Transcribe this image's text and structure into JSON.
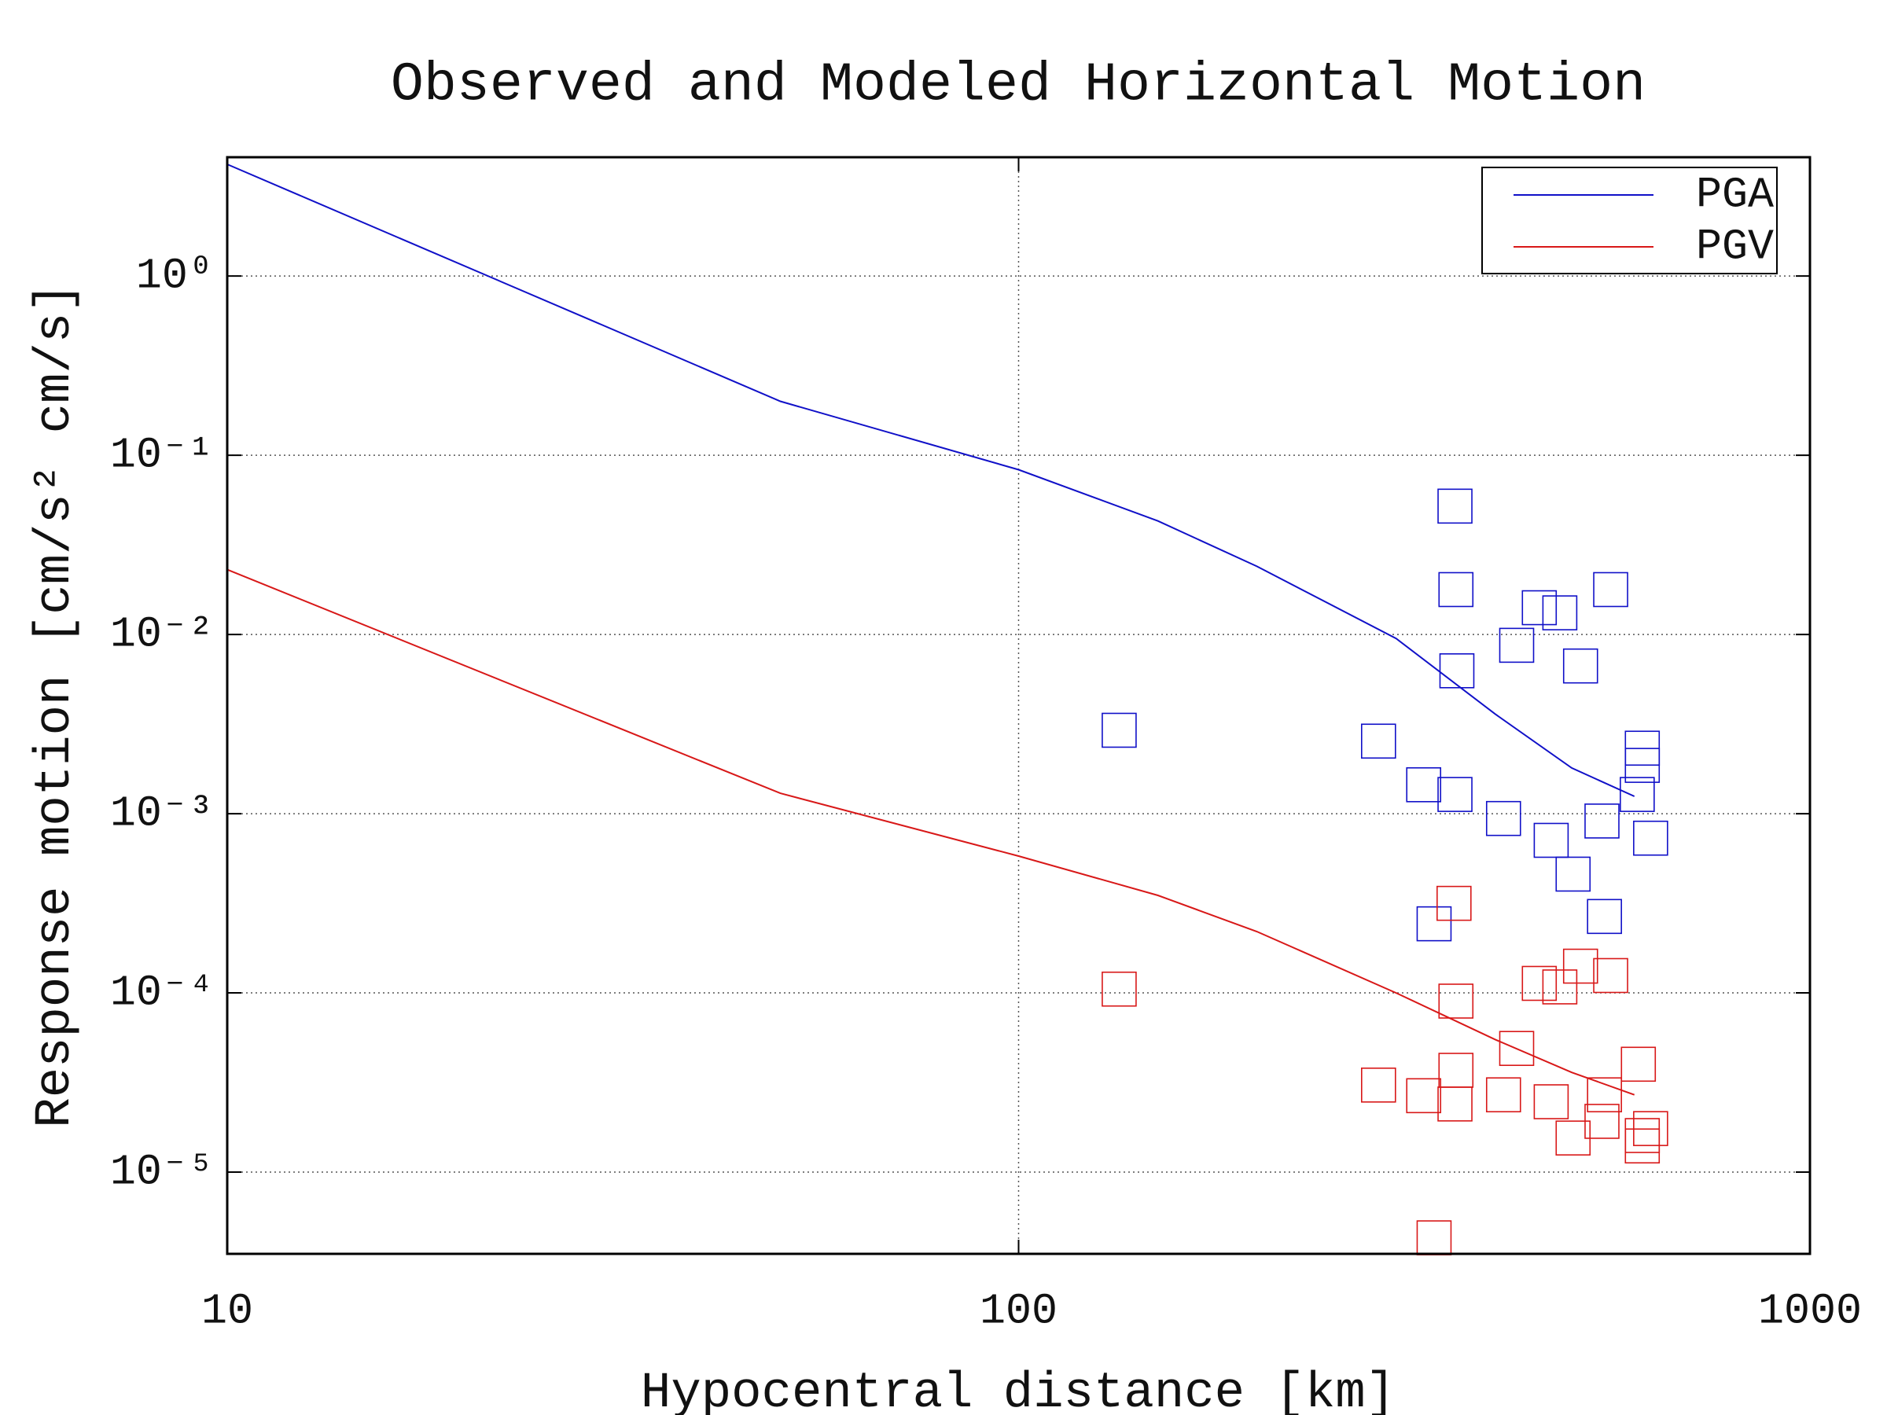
{
  "chart_data": {
    "type": "line",
    "title": "Observed and Modeled Horizontal Motion",
    "x_label": "Hypocentral distance [km]",
    "y_label": "Response motion [cm/s²  cm/s]",
    "xscale": "log",
    "yscale": "log",
    "xlim": [
      10,
      1000
    ],
    "ylim": [
      3.5e-06,
      4.6
    ],
    "xticks": [
      10,
      100,
      1000
    ],
    "yticks": [
      {
        "value": 1e-05,
        "label": "10⁻⁵"
      },
      {
        "value": 0.0001,
        "label": "10⁻⁴"
      },
      {
        "value": 0.001,
        "label": "10⁻³"
      },
      {
        "value": 0.01,
        "label": "10⁻²"
      },
      {
        "value": 0.1,
        "label": "10⁻¹"
      },
      {
        "value": 1,
        "label": "10⁰"
      }
    ],
    "grid": true,
    "legend": "upper right",
    "series": [
      {
        "name": "PGA",
        "color": "#1010c8",
        "x": [
          10,
          50,
          100,
          150,
          200,
          300,
          400,
          500,
          600
        ],
        "values": [
          4.2,
          0.2,
          0.083,
          0.043,
          0.024,
          0.0095,
          0.0036,
          0.0018,
          0.00125
        ]
      },
      {
        "name": "PGV",
        "color": "#d81818",
        "x": [
          10,
          50,
          100,
          150,
          200,
          300,
          400,
          500,
          600
        ],
        "values": [
          0.023,
          0.0013,
          0.00058,
          0.00035,
          0.00022,
          0.0001,
          5.5e-05,
          3.6e-05,
          2.7e-05
        ]
      }
    ],
    "observations": [
      {
        "marker": "square",
        "color": "#1010c8",
        "x": [
          134,
          356,
          357,
          358,
          285,
          325,
          356,
          335,
          410,
          426,
          455,
          483,
          513,
          471,
          502,
          546,
          560,
          550,
          614,
          614,
          605,
          629
        ],
        "values": [
          0.00292,
          0.052,
          0.0178,
          0.00627,
          0.00254,
          0.00145,
          0.00128,
          0.000243,
          0.00094,
          0.0087,
          0.0141,
          0.0132,
          0.00667,
          0.00071,
          0.00046,
          0.00091,
          0.0178,
          0.000267,
          0.00232,
          0.00186,
          0.00128,
          0.00073
        ]
      },
      {
        "marker": "square",
        "color": "#d81818",
        "x": [
          134,
          355,
          357,
          285,
          325,
          357,
          356,
          335,
          410,
          426,
          455,
          483,
          513,
          471,
          502,
          546,
          560,
          550,
          607,
          614,
          614,
          629
        ],
        "values": [
          0.000105,
          0.000316,
          9e-05,
          3.06e-05,
          2.67e-05,
          3.7e-05,
          2.4e-05,
          4.3e-06,
          2.7e-05,
          4.9e-05,
          0.000113,
          0.000108,
          0.000141,
          2.47e-05,
          1.55e-05,
          1.92e-05,
          0.000125,
          2.7e-05,
          4e-05,
          1.6e-05,
          1.4e-05,
          1.75e-05
        ]
      }
    ]
  }
}
